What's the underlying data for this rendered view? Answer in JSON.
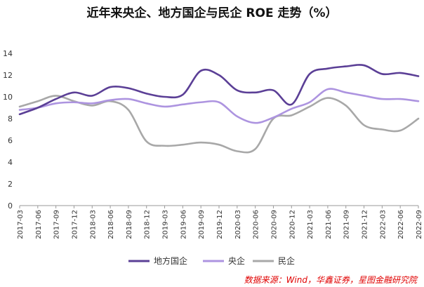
{
  "chart_data": {
    "type": "line",
    "title": "近年来央企、地方国企与民企 ROE 走势（%）",
    "xlabel": "",
    "ylabel": "",
    "ylim": [
      0,
      14
    ],
    "yticks": [
      "0",
      "2",
      "4",
      "6",
      "8",
      "10",
      "12",
      "14"
    ],
    "grid": false,
    "legend_position": "bottom",
    "categories": [
      "2017-03",
      "2017-06",
      "2017-09",
      "2017-12",
      "2018-03",
      "2018-06",
      "2018-09",
      "2018-12",
      "2019-03",
      "2019-06",
      "2019-09",
      "2019-12",
      "2020-03",
      "2020-06",
      "2020-09",
      "2020-12",
      "2021-03",
      "2021-06",
      "2021-09",
      "2021-12",
      "2022-03",
      "2022-06",
      "2022-09"
    ],
    "series": [
      {
        "name": "地方国企",
        "color": "#5b3f96",
        "values": [
          8.4,
          9.0,
          9.8,
          10.4,
          10.1,
          10.9,
          10.8,
          10.3,
          10.0,
          10.2,
          12.4,
          12.0,
          10.6,
          10.4,
          10.6,
          9.3,
          12.1,
          12.6,
          12.8,
          12.9,
          12.1,
          12.2,
          11.9
        ]
      },
      {
        "name": "央企",
        "color": "#ad94e0",
        "values": [
          8.8,
          9.0,
          9.4,
          9.5,
          9.4,
          9.7,
          9.8,
          9.4,
          9.1,
          9.3,
          9.5,
          9.5,
          8.2,
          7.6,
          8.1,
          8.9,
          9.5,
          10.7,
          10.4,
          10.1,
          9.8,
          9.8,
          9.6
        ]
      },
      {
        "name": "民企",
        "color": "#a8a8a8",
        "values": [
          9.1,
          9.6,
          10.1,
          9.6,
          9.2,
          9.6,
          8.8,
          5.9,
          5.5,
          5.6,
          5.8,
          5.6,
          5.0,
          5.2,
          8.0,
          8.3,
          9.1,
          9.9,
          9.2,
          7.4,
          7.0,
          6.9,
          8.0
        ]
      }
    ]
  },
  "source_note": "数据来源：Wind，华鑫证券，星图金融研究院"
}
